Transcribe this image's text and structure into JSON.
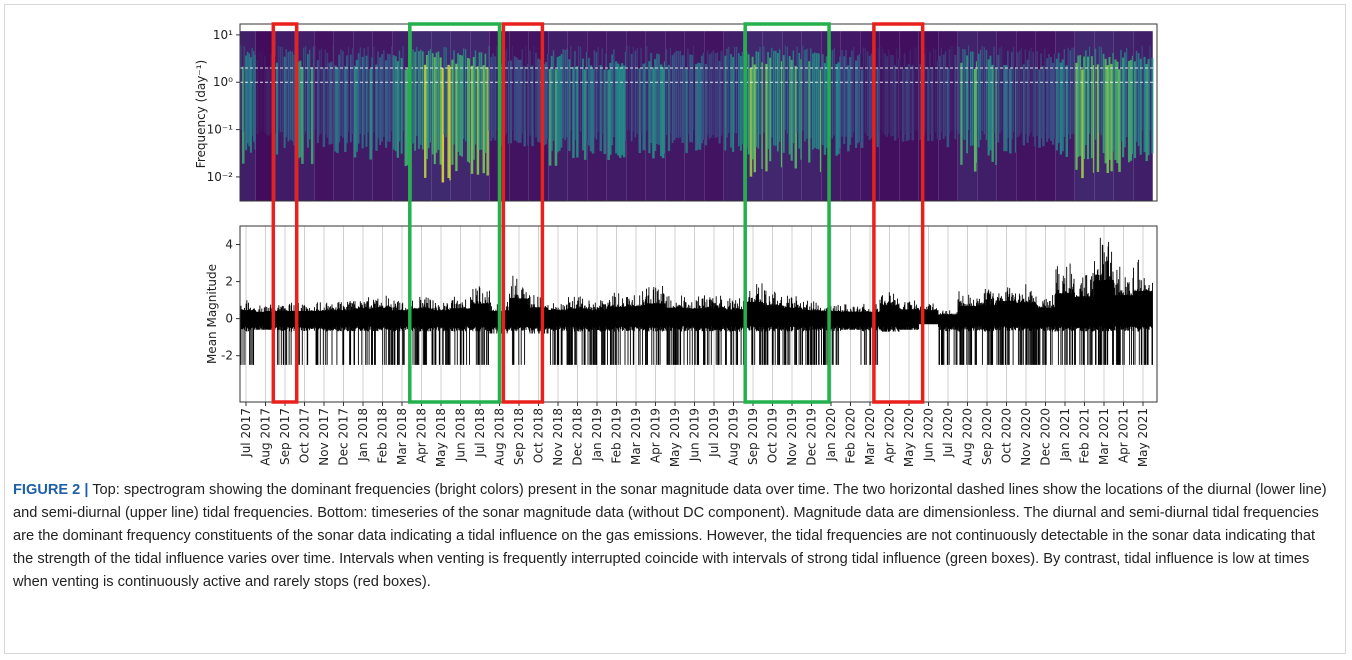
{
  "chart_data": [
    {
      "type": "heatmap",
      "y_label": "Frequency (day⁻¹)",
      "log_y": true,
      "ylim": [
        0.0031,
        17
      ],
      "spectrum_top": 12,
      "yticks": [
        {
          "value": 10,
          "label": "10¹"
        },
        {
          "value": 1,
          "label": "10⁰"
        },
        {
          "value": 0.1,
          "label": "10⁻¹"
        },
        {
          "value": 0.01,
          "label": "10⁻²"
        }
      ],
      "tidal_frequencies": [
        1,
        2
      ],
      "tidal_line_color": "#ffffff",
      "values": [
        0.6,
        0.1,
        0.5,
        0.6,
        0.3,
        0.4,
        0.5,
        0.4,
        0.6,
        0.9,
        0.9,
        0.8,
        0.8,
        0.3,
        0.3,
        0.3,
        0.6,
        0.5,
        0.4,
        0.5,
        0.4,
        0.5,
        0.4,
        0.4,
        0.3,
        0.6,
        0.8,
        0.8,
        0.7,
        0.7,
        0.5,
        0.4,
        0.3,
        0.2,
        0.2,
        0.2,
        0.3,
        0.7,
        0.6,
        0.4,
        0.3,
        0.3,
        0.5,
        0.8,
        0.8,
        0.7,
        0.6
      ]
    },
    {
      "type": "range",
      "y_label": "Mean Magnitude",
      "color": "#000000",
      "grid": true,
      "ylim": [
        -4.5,
        5.0
      ],
      "yticks": [
        -2,
        0,
        2,
        4
      ],
      "max": [
        1.0,
        0.8,
        0.9,
        0.9,
        0.9,
        1.0,
        1.2,
        1.3,
        1.0,
        1.2,
        1.0,
        1.2,
        1.8,
        0.9,
        2.4,
        1.3,
        1.0,
        1.2,
        1.0,
        1.4,
        1.5,
        1.8,
        1.3,
        1.2,
        1.3,
        1.1,
        2.0,
        1.6,
        1.3,
        1.0,
        0.9,
        0.8,
        0.8,
        1.6,
        1.1,
        1.0,
        0.5,
        1.5,
        1.6,
        2.1,
        1.9,
        1.3,
        3.0,
        2.6,
        4.6,
        2.8,
        3.3
      ],
      "min": [
        -2.5,
        -0.6,
        -2.5,
        -2.5,
        -2.5,
        -2.5,
        -2.5,
        -2.5,
        -2.5,
        -2.5,
        -2.5,
        -2.5,
        -2.5,
        -0.8,
        -2.5,
        -0.8,
        -2.5,
        -2.5,
        -2.5,
        -2.5,
        -2.5,
        -2.5,
        -2.5,
        -2.5,
        -2.5,
        -2.5,
        -2.5,
        -2.5,
        -2.5,
        -2.5,
        -2.5,
        -0.6,
        -2.5,
        -0.7,
        -0.6,
        -0.3,
        -2.5,
        -2.5,
        -2.5,
        -2.5,
        -2.5,
        -2.5,
        -2.5,
        -2.5,
        -2.5,
        -2.5,
        -2.5
      ]
    }
  ],
  "categories": [
    "Jul 2017",
    "Aug 2017",
    "Sep 2017",
    "Oct 2017",
    "Nov 2017",
    "Dec 2017",
    "Jan 2018",
    "Feb 2018",
    "Mar 2018",
    "Apr 2018",
    "May 2018",
    "Jun 2018",
    "Jul 2018",
    "Aug 2018",
    "Sep 2018",
    "Oct 2018",
    "Nov 2018",
    "Dec 2018",
    "Jan 2019",
    "Feb 2019",
    "Mar 2019",
    "Apr 2019",
    "May 2019",
    "Jun 2019",
    "Jul 2019",
    "Aug 2019",
    "Sep 2019",
    "Oct 2019",
    "Nov 2019",
    "Dec 2019",
    "Jan 2020",
    "Feb 2020",
    "Mar 2020",
    "Apr 2020",
    "May 2020",
    "Jun 2020",
    "Jul 2020",
    "Aug 2020",
    "Sep 2020",
    "Oct 2020",
    "Nov 2020",
    "Dec 2020",
    "Jan 2021",
    "Feb 2021",
    "Mar 2021",
    "Apr 2021",
    "May 2021"
  ],
  "highlight_boxes": [
    {
      "color": "#e8211d",
      "start": 1.4,
      "end": 2.6
    },
    {
      "color": "#22b14c",
      "start": 8.4,
      "end": 13.0
    },
    {
      "color": "#e8211d",
      "start": 13.2,
      "end": 15.2
    },
    {
      "color": "#22b14c",
      "start": 25.6,
      "end": 29.9
    },
    {
      "color": "#e8211d",
      "start": 32.2,
      "end": 34.7
    }
  ],
  "caption": {
    "label": "FIGURE 2 |",
    "text": "Top: spectrogram showing the dominant frequencies (bright colors) present in the sonar magnitude data over time. The two horizontal dashed lines show the locations of the diurnal (lower line) and semi-diurnal (upper line) tidal frequencies. Bottom: timeseries of the sonar magnitude data (without DC component). Magnitude data are dimensionless. The diurnal and semi-diurnal tidal frequencies are the dominant frequency constituents of the sonar data indicating a tidal influence on the gas emissions. However, the tidal frequencies are not continuously detectable in the sonar data indicating that the strength of the tidal influence varies over time. Intervals when venting is frequently interrupted coincide with intervals of strong tidal influence (green boxes). By contrast, tidal influence is low at times when venting is continuously active and rarely stops (red boxes)."
  }
}
